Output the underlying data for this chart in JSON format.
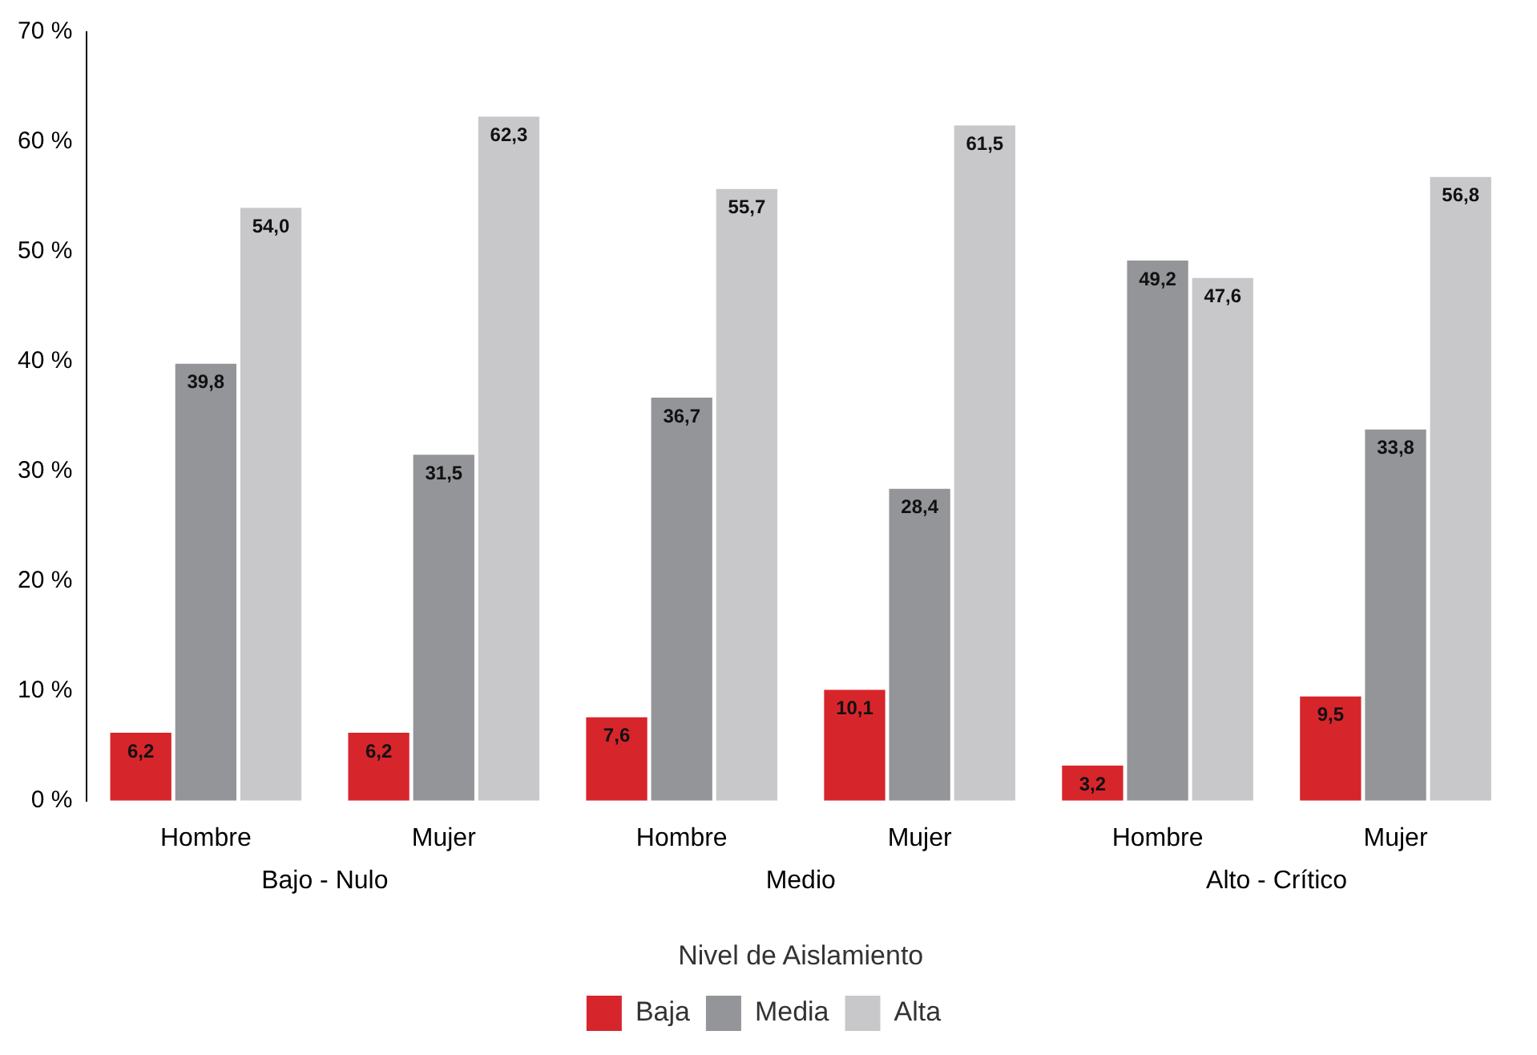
{
  "chart_data": {
    "type": "bar",
    "xlabel": "Nivel de Aislamiento",
    "categories": [
      "Hombre",
      "Mujer",
      "Hombre",
      "Mujer",
      "Hombre",
      "Mujer"
    ],
    "annotations": [
      "Bajo - Nulo",
      "Medio",
      "Alto - Crítico"
    ],
    "series": [
      {
        "name": "Baja",
        "color": "#d7252c",
        "values": [
          6.2,
          6.2,
          7.6,
          10.1,
          3.2,
          9.5
        ],
        "value_labels": [
          "6,2",
          "6,2",
          "7,6",
          "10,1",
          "3,2",
          "9,5"
        ]
      },
      {
        "name": "Media",
        "color": "#939598",
        "values": [
          39.8,
          31.5,
          36.7,
          28.4,
          49.2,
          33.8
        ],
        "value_labels": [
          "39,8",
          "31,5",
          "36,7",
          "28,4",
          "49,2",
          "33,8"
        ]
      },
      {
        "name": "Alta",
        "color": "#c8c8ca",
        "values": [
          54.0,
          62.3,
          55.7,
          61.5,
          47.6,
          56.8
        ],
        "value_labels": [
          "54,0",
          "62,3",
          "55,7",
          "61,5",
          "47,6",
          "56,8"
        ]
      }
    ],
    "ylim": [
      0,
      70
    ],
    "yticks": [
      {
        "value": 0,
        "label": "0 %"
      },
      {
        "value": 10,
        "label": "10 %"
      },
      {
        "value": 20,
        "label": "20 %"
      },
      {
        "value": 30,
        "label": "30 %"
      },
      {
        "value": 40,
        "label": "40 %"
      },
      {
        "value": 50,
        "label": "50 %"
      },
      {
        "value": 60,
        "label": "60 %"
      },
      {
        "value": 70,
        "label": "70 %"
      }
    ],
    "grid": false,
    "legend": "bottom"
  }
}
